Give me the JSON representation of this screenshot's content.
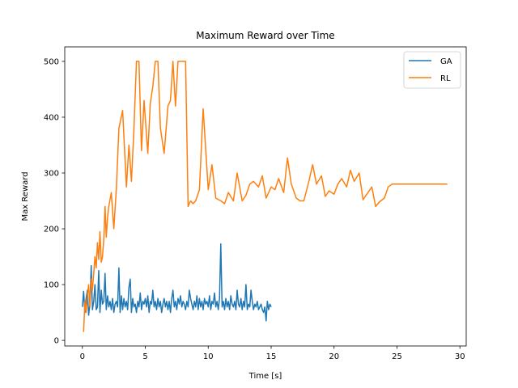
{
  "chart_data": {
    "type": "line",
    "title": "Maximum Reward over Time",
    "xlabel": "Time [s]",
    "ylabel": "Max Reward",
    "xlim": [
      -1.4,
      30.5
    ],
    "ylim": [
      -10,
      526
    ],
    "xticks": [
      0,
      5,
      10,
      15,
      20,
      25,
      30
    ],
    "yticks": [
      0,
      100,
      200,
      300,
      400,
      500
    ],
    "grid": false,
    "legend_position": "top-right",
    "series": [
      {
        "name": "GA",
        "color": "#1f77b4",
        "x": [
          0.0,
          0.1,
          0.2,
          0.3,
          0.4,
          0.5,
          0.6,
          0.7,
          0.8,
          0.9,
          1.0,
          1.1,
          1.2,
          1.3,
          1.4,
          1.5,
          1.6,
          1.7,
          1.8,
          1.9,
          2.0,
          2.1,
          2.2,
          2.3,
          2.4,
          2.5,
          2.6,
          2.7,
          2.8,
          2.9,
          3.0,
          3.1,
          3.2,
          3.3,
          3.4,
          3.5,
          3.6,
          3.7,
          3.8,
          3.9,
          4.0,
          4.1,
          4.2,
          4.3,
          4.4,
          4.5,
          4.6,
          4.7,
          4.8,
          4.9,
          5.0,
          5.1,
          5.2,
          5.3,
          5.4,
          5.5,
          5.6,
          5.7,
          5.8,
          5.9,
          6.0,
          6.1,
          6.2,
          6.3,
          6.4,
          6.5,
          6.6,
          6.7,
          6.8,
          6.9,
          7.0,
          7.1,
          7.2,
          7.3,
          7.4,
          7.5,
          7.6,
          7.7,
          7.8,
          7.9,
          8.0,
          8.1,
          8.2,
          8.3,
          8.4,
          8.5,
          8.6,
          8.7,
          8.8,
          8.9,
          9.0,
          9.1,
          9.2,
          9.3,
          9.4,
          9.5,
          9.6,
          9.7,
          9.8,
          9.9,
          10.0,
          10.1,
          10.2,
          10.3,
          10.4,
          10.5,
          10.6,
          10.7,
          10.8,
          10.9,
          11.0,
          11.1,
          11.2,
          11.3,
          11.4,
          11.5,
          11.6,
          11.7,
          11.8,
          11.9,
          12.0,
          12.1,
          12.2,
          12.3,
          12.4,
          12.5,
          12.6,
          12.7,
          12.8,
          12.9,
          13.0,
          13.1,
          13.2,
          13.3,
          13.4,
          13.5,
          13.6,
          13.7,
          13.8,
          13.9,
          14.0,
          14.1,
          14.2,
          14.3,
          14.4,
          14.5,
          14.6,
          14.7,
          14.8,
          14.9,
          15.0
        ],
        "values": [
          60,
          88,
          50,
          75,
          90,
          45,
          65,
          134,
          55,
          70,
          100,
          55,
          60,
          125,
          50,
          90,
          65,
          70,
          120,
          55,
          80,
          60,
          70,
          55,
          75,
          50,
          65,
          70,
          60,
          130,
          50,
          80,
          55,
          75,
          60,
          70,
          55,
          95,
          110,
          50,
          75,
          60,
          65,
          50,
          70,
          60,
          85,
          55,
          70,
          65,
          75,
          60,
          80,
          50,
          70,
          65,
          90,
          60,
          70,
          55,
          75,
          60,
          70,
          50,
          65,
          75,
          60,
          70,
          55,
          70,
          50,
          75,
          90,
          60,
          70,
          55,
          75,
          65,
          80,
          60,
          70,
          65,
          55,
          70,
          60,
          90,
          75,
          65,
          55,
          70,
          60,
          80,
          55,
          75,
          60,
          70,
          55,
          75,
          65,
          70,
          60,
          80,
          55,
          70,
          65,
          85,
          60,
          70,
          55,
          75,
          173,
          60,
          70,
          55,
          75,
          60,
          70,
          55,
          80,
          65,
          60,
          70,
          55,
          90,
          65,
          60,
          75,
          55,
          70,
          60,
          100,
          55,
          65,
          60,
          90,
          70,
          55,
          65,
          60,
          70,
          55,
          60,
          65,
          55,
          50,
          60,
          35,
          70,
          55,
          65,
          60
        ]
      },
      {
        "name": "RL",
        "color": "#ff7f0e",
        "x": [
          0.1,
          0.2,
          0.3,
          0.4,
          0.5,
          0.6,
          0.7,
          0.8,
          0.9,
          1.0,
          1.1,
          1.2,
          1.3,
          1.4,
          1.5,
          1.6,
          1.7,
          1.8,
          1.9,
          2.0,
          2.1,
          2.3,
          2.5,
          2.7,
          2.9,
          3.2,
          3.5,
          3.7,
          3.9,
          4.1,
          4.3,
          4.5,
          4.7,
          4.9,
          5.2,
          5.4,
          5.6,
          5.8,
          6.0,
          6.2,
          6.5,
          6.8,
          7.0,
          7.2,
          7.4,
          7.6,
          7.9,
          8.2,
          8.4,
          8.6,
          8.8,
          9.0,
          9.3,
          9.6,
          10.0,
          10.3,
          10.6,
          11.0,
          11.3,
          11.6,
          12.0,
          12.3,
          12.7,
          13.0,
          13.3,
          13.6,
          14.0,
          14.3,
          14.6,
          15.0,
          15.3,
          15.6,
          16.0,
          16.3,
          16.6,
          17.0,
          17.3,
          17.6,
          18.0,
          18.3,
          18.6,
          19.0,
          19.3,
          19.6,
          20.0,
          20.3,
          20.6,
          21.0,
          21.3,
          21.6,
          22.0,
          22.3,
          22.6,
          23.0,
          23.3,
          23.6,
          24.0,
          24.3,
          24.6,
          25.0,
          25.3,
          25.6,
          26.0,
          26.3,
          26.6,
          27.0,
          27.3,
          27.6,
          28.0,
          28.3,
          28.6,
          29.0
        ],
        "values": [
          15,
          70,
          50,
          80,
          100,
          60,
          110,
          90,
          120,
          150,
          130,
          175,
          145,
          195,
          140,
          150,
          180,
          240,
          185,
          220,
          240,
          265,
          200,
          270,
          380,
          412,
          275,
          350,
          285,
          380,
          500,
          500,
          340,
          430,
          335,
          425,
          455,
          500,
          500,
          380,
          335,
          420,
          430,
          500,
          420,
          500,
          500,
          500,
          240,
          250,
          245,
          250,
          270,
          415,
          270,
          315,
          255,
          250,
          245,
          265,
          250,
          300,
          250,
          260,
          280,
          285,
          275,
          295,
          255,
          275,
          270,
          290,
          265,
          327,
          280,
          255,
          250,
          250,
          285,
          315,
          280,
          295,
          258,
          268,
          262,
          280,
          290,
          275,
          305,
          285,
          300,
          252,
          262,
          275,
          240,
          248,
          255,
          275,
          280,
          280,
          280,
          280,
          280,
          280,
          280,
          280,
          280,
          280,
          280,
          280,
          280,
          280
        ]
      }
    ]
  }
}
